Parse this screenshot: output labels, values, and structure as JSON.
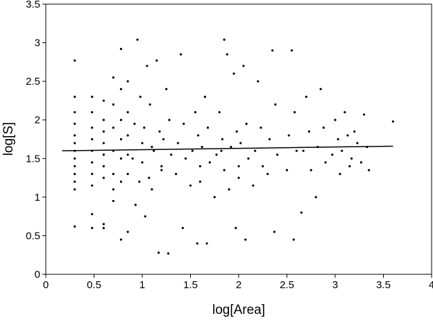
{
  "chart_data": {
    "type": "scatter",
    "xlabel": "log[Area]",
    "ylabel": "log[S]",
    "xlim": [
      0,
      4
    ],
    "ylim": [
      0,
      3.5
    ],
    "xticks": [
      0,
      0.5,
      1,
      1.5,
      2,
      2.5,
      3,
      3.5,
      4
    ],
    "yticks": [
      0,
      0.5,
      1,
      1.5,
      2,
      2.5,
      3,
      3.5
    ],
    "grid": false,
    "series": [
      {
        "color": "#000000",
        "x": [
          0.3,
          0.3,
          0.3,
          0.3,
          0.3,
          0.3,
          0.3,
          0.3,
          0.3,
          0.3,
          0.3,
          0.3,
          0.3,
          0.48,
          0.48,
          0.48,
          0.48,
          0.48,
          0.48,
          0.48,
          0.48,
          0.48,
          0.48,
          0.6,
          0.6,
          0.6,
          0.6,
          0.6,
          0.6,
          0.6,
          0.6,
          0.6,
          0.7,
          0.7,
          0.7,
          0.7,
          0.7,
          0.7,
          0.7,
          0.78,
          0.78,
          0.78,
          0.78,
          0.78,
          0.78,
          0.78,
          0.85,
          0.85,
          0.85,
          0.85,
          0.85,
          0.85,
          0.95,
          0.98,
          0.92,
          1.0,
          0.9,
          0.97,
          0.93,
          1.05,
          1.08,
          1.02,
          1.1,
          1.0,
          1.07,
          1.03,
          1.15,
          1.18,
          1.12,
          1.2,
          1.1,
          1.17,
          1.25,
          1.28,
          1.22,
          1.3,
          1.2,
          1.27,
          1.4,
          1.43,
          1.37,
          1.45,
          1.35,
          1.42,
          1.55,
          1.58,
          1.52,
          1.6,
          1.5,
          1.57,
          1.65,
          1.68,
          1.62,
          1.7,
          1.6,
          1.67,
          1.8,
          1.83,
          1.77,
          1.85,
          1.75,
          1.85,
          1.88,
          1.82,
          1.95,
          1.98,
          1.92,
          2.0,
          1.9,
          1.97,
          2.05,
          2.08,
          2.02,
          2.1,
          2.0,
          2.07,
          2.2,
          2.23,
          2.17,
          2.25,
          2.15,
          2.35,
          2.38,
          2.32,
          2.4,
          2.3,
          2.37,
          2.55,
          2.58,
          2.52,
          2.6,
          2.5,
          2.57,
          2.7,
          2.73,
          2.67,
          2.75,
          2.65,
          2.85,
          2.88,
          2.82,
          2.9,
          2.8,
          3.0,
          3.03,
          2.97,
          3.05,
          3.1,
          3.13,
          3.07,
          3.15,
          3.2,
          3.23,
          3.17,
          3.3,
          3.33,
          3.27,
          3.35,
          3.6
        ],
        "values": [
          2.77,
          2.3,
          2.1,
          1.95,
          1.8,
          1.7,
          1.6,
          1.5,
          1.4,
          1.3,
          1.2,
          1.1,
          0.62,
          2.3,
          2.1,
          1.9,
          1.75,
          1.6,
          1.45,
          1.3,
          1.15,
          0.78,
          0.6,
          2.25,
          2.0,
          1.85,
          1.7,
          1.55,
          1.4,
          1.25,
          0.65,
          0.6,
          2.55,
          2.2,
          1.9,
          1.6,
          1.3,
          1.1,
          0.95,
          2.92,
          2.4,
          2.0,
          1.75,
          1.5,
          1.2,
          0.45,
          2.5,
          2.1,
          1.8,
          1.55,
          1.3,
          0.55,
          3.04,
          2.3,
          1.95,
          1.7,
          1.5,
          1.2,
          0.9,
          2.7,
          2.2,
          1.9,
          1.65,
          1.45,
          1.25,
          0.75,
          2.77,
          1.85,
          1.6,
          1.4,
          1.1,
          0.28,
          2.4,
          2.0,
          1.75,
          1.55,
          1.35,
          0.27,
          2.85,
          1.95,
          1.7,
          1.5,
          1.3,
          0.6,
          2.1,
          1.8,
          1.6,
          1.4,
          1.15,
          0.4,
          2.3,
          1.9,
          1.65,
          1.45,
          1.2,
          0.4,
          2.1,
          1.75,
          1.55,
          1.35,
          1.0,
          3.04,
          2.85,
          1.6,
          2.6,
          1.85,
          1.65,
          1.4,
          1.1,
          0.6,
          2.7,
          1.95,
          1.7,
          1.5,
          1.25,
          0.45,
          2.5,
          1.9,
          1.6,
          1.4,
          1.15,
          2.9,
          2.2,
          1.75,
          1.55,
          1.3,
          0.55,
          2.9,
          2.1,
          1.8,
          1.6,
          1.35,
          0.45,
          2.3,
          1.85,
          1.6,
          1.35,
          0.8,
          2.4,
          1.9,
          1.65,
          1.45,
          1.0,
          2.0,
          1.75,
          1.55,
          1.3,
          2.1,
          1.8,
          1.6,
          1.4,
          1.85,
          1.7,
          1.5,
          2.07,
          1.65,
          1.45,
          1.35,
          1.98
        ]
      },
      {
        "type": "line",
        "color": "#000000",
        "x": [
          0.17,
          3.6
        ],
        "values": [
          1.6,
          1.66
        ]
      }
    ]
  }
}
